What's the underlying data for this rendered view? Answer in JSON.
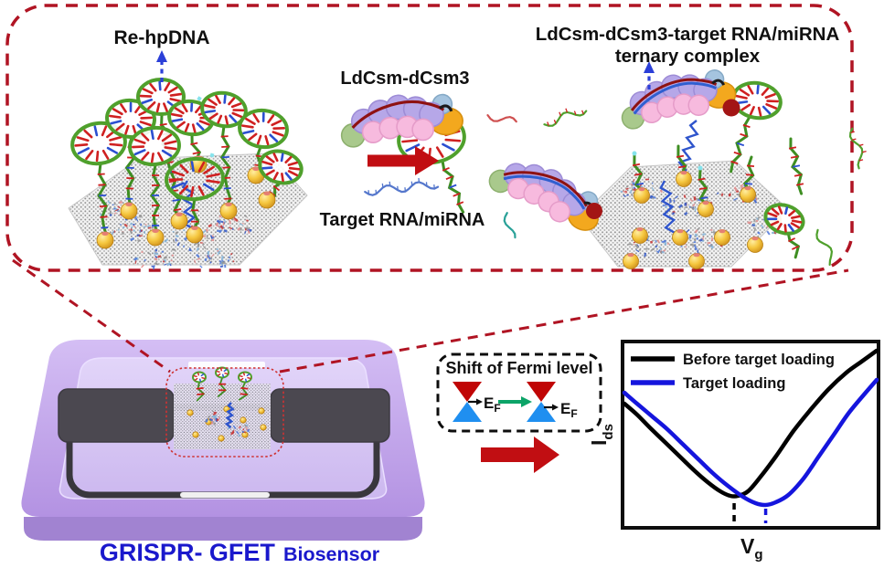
{
  "labels": {
    "re_hpdna": "Re-hpDNA",
    "ldcsm": "LdCsm-dCsm3",
    "target_rna": "Target RNA/miRNA",
    "ternary_line1": "LdCsm-dCsm3-target RNA/miRNA",
    "ternary_line2": "ternary complex"
  },
  "fermi_box": {
    "title": "Shift of Fermi level",
    "ef_main": "E",
    "ef_sub": "F"
  },
  "device": {
    "name_main": "GRISPR- GFET",
    "name_sub": "Biosensor"
  },
  "chart_data": {
    "type": "line",
    "title": "",
    "xlabel_main": "V",
    "xlabel_sub": "g",
    "ylabel_main": "I",
    "ylabel_sub": "ds",
    "xlim": [
      0,
      1
    ],
    "ylim": [
      0,
      1
    ],
    "grid": false,
    "axes_ticks": false,
    "legend_position": "top-left",
    "series": [
      {
        "name": "Before target loading",
        "color": "#000000",
        "dirac_point_x": 0.435,
        "points": [
          [
            0,
            0.67
          ],
          [
            0.05,
            0.61
          ],
          [
            0.1,
            0.54
          ],
          [
            0.16,
            0.46
          ],
          [
            0.22,
            0.38
          ],
          [
            0.28,
            0.3
          ],
          [
            0.33,
            0.24
          ],
          [
            0.38,
            0.19
          ],
          [
            0.42,
            0.165
          ],
          [
            0.45,
            0.165
          ],
          [
            0.49,
            0.19
          ],
          [
            0.54,
            0.27
          ],
          [
            0.6,
            0.38
          ],
          [
            0.67,
            0.52
          ],
          [
            0.74,
            0.64
          ],
          [
            0.81,
            0.75
          ],
          [
            0.88,
            0.84
          ],
          [
            0.94,
            0.9
          ],
          [
            1,
            0.96
          ]
        ]
      },
      {
        "name": "Target loading",
        "color": "#1515dd",
        "dirac_point_x": 0.56,
        "points": [
          [
            0,
            0.73
          ],
          [
            0.05,
            0.67
          ],
          [
            0.11,
            0.6
          ],
          [
            0.17,
            0.53
          ],
          [
            0.23,
            0.45
          ],
          [
            0.29,
            0.37
          ],
          [
            0.35,
            0.29
          ],
          [
            0.41,
            0.22
          ],
          [
            0.47,
            0.16
          ],
          [
            0.52,
            0.125
          ],
          [
            0.56,
            0.115
          ],
          [
            0.6,
            0.13
          ],
          [
            0.65,
            0.17
          ],
          [
            0.71,
            0.26
          ],
          [
            0.77,
            0.38
          ],
          [
            0.83,
            0.5
          ],
          [
            0.89,
            0.62
          ],
          [
            0.95,
            0.72
          ],
          [
            1,
            0.8
          ]
        ]
      }
    ]
  },
  "colors": {
    "panel_border_red": "#b01423",
    "arrow_red": "#c10e12",
    "dashed_arrow_blue": "#2b3fd8",
    "device_label_blue": "#1a18cc",
    "curve_blue": "#1515dd",
    "green_arrow": "#0ca468",
    "dirac_red": "#c00505",
    "dirac_blue": "#1f8ff0",
    "chip_purple": "#c2a7ea",
    "gold_nanoparticle": "#f0bc38",
    "hairpin_green": "#4fa02c",
    "graphene_gray": "#8d8d8d"
  }
}
